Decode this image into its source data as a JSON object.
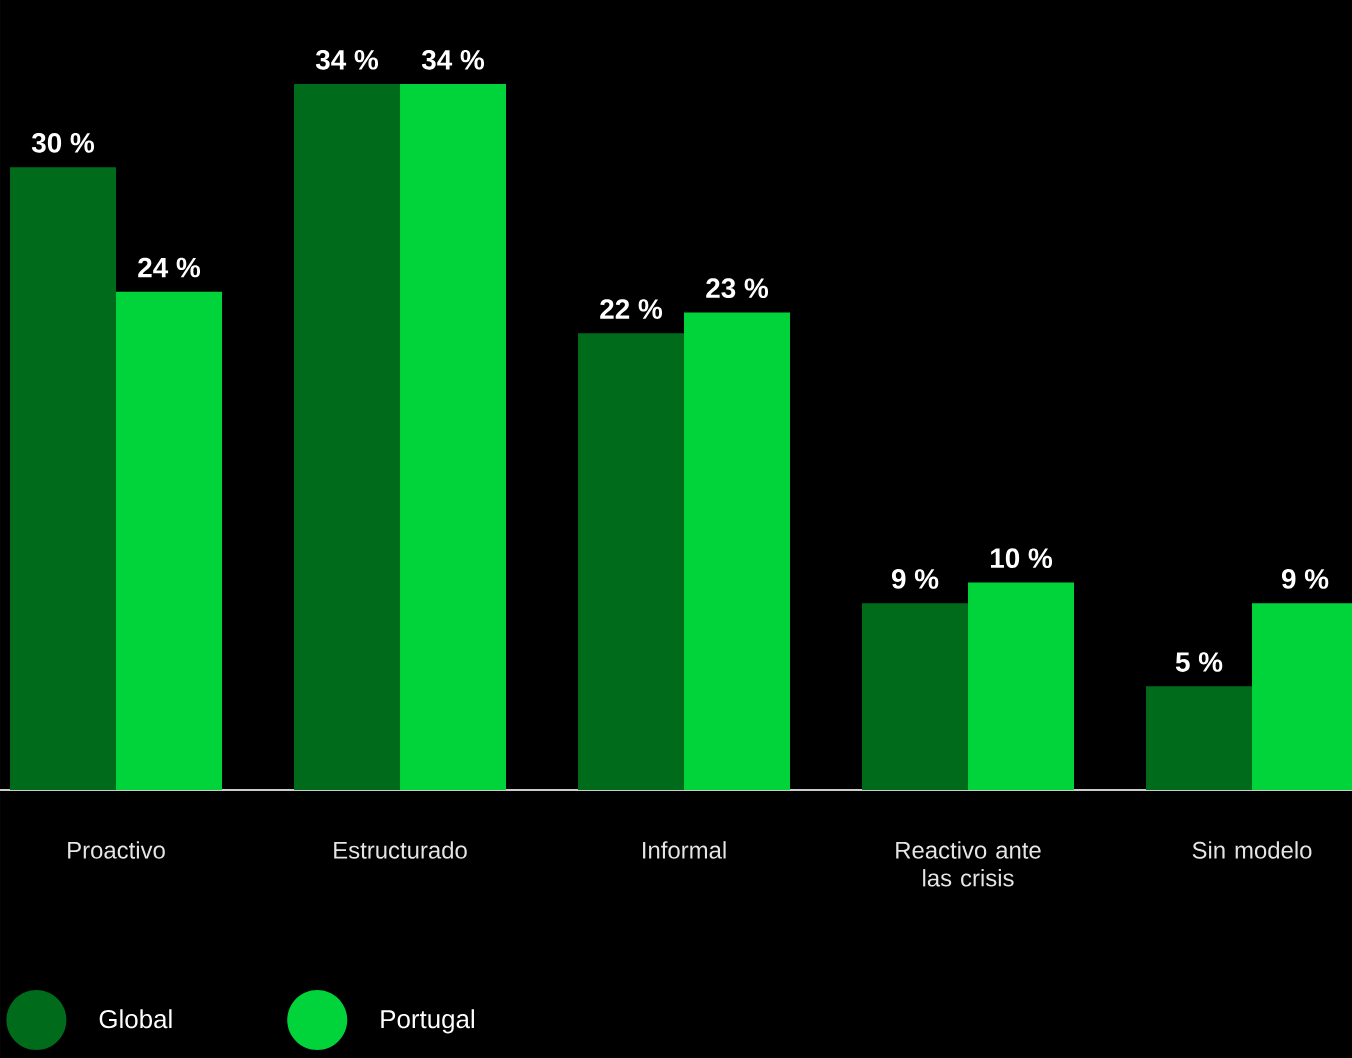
{
  "chart_data": {
    "type": "bar",
    "categories": [
      "Proactivo",
      "Estructurado",
      "Informal",
      "Reactivo ante las crisis",
      "Sin modelo"
    ],
    "series": [
      {
        "name": "Global",
        "color": "#006b1a",
        "values": [
          30,
          34,
          22,
          9,
          5
        ],
        "value_labels": [
          "30 %",
          "34 %",
          "22 %",
          "9 %",
          "5 %"
        ]
      },
      {
        "name": "Portugal",
        "color": "#00d43a",
        "values": [
          24,
          34,
          23,
          10,
          9
        ],
        "value_labels": [
          "24 %",
          "34 %",
          "23 %",
          "10 %",
          "9 %"
        ]
      }
    ],
    "legend": "bottom left"
  }
}
